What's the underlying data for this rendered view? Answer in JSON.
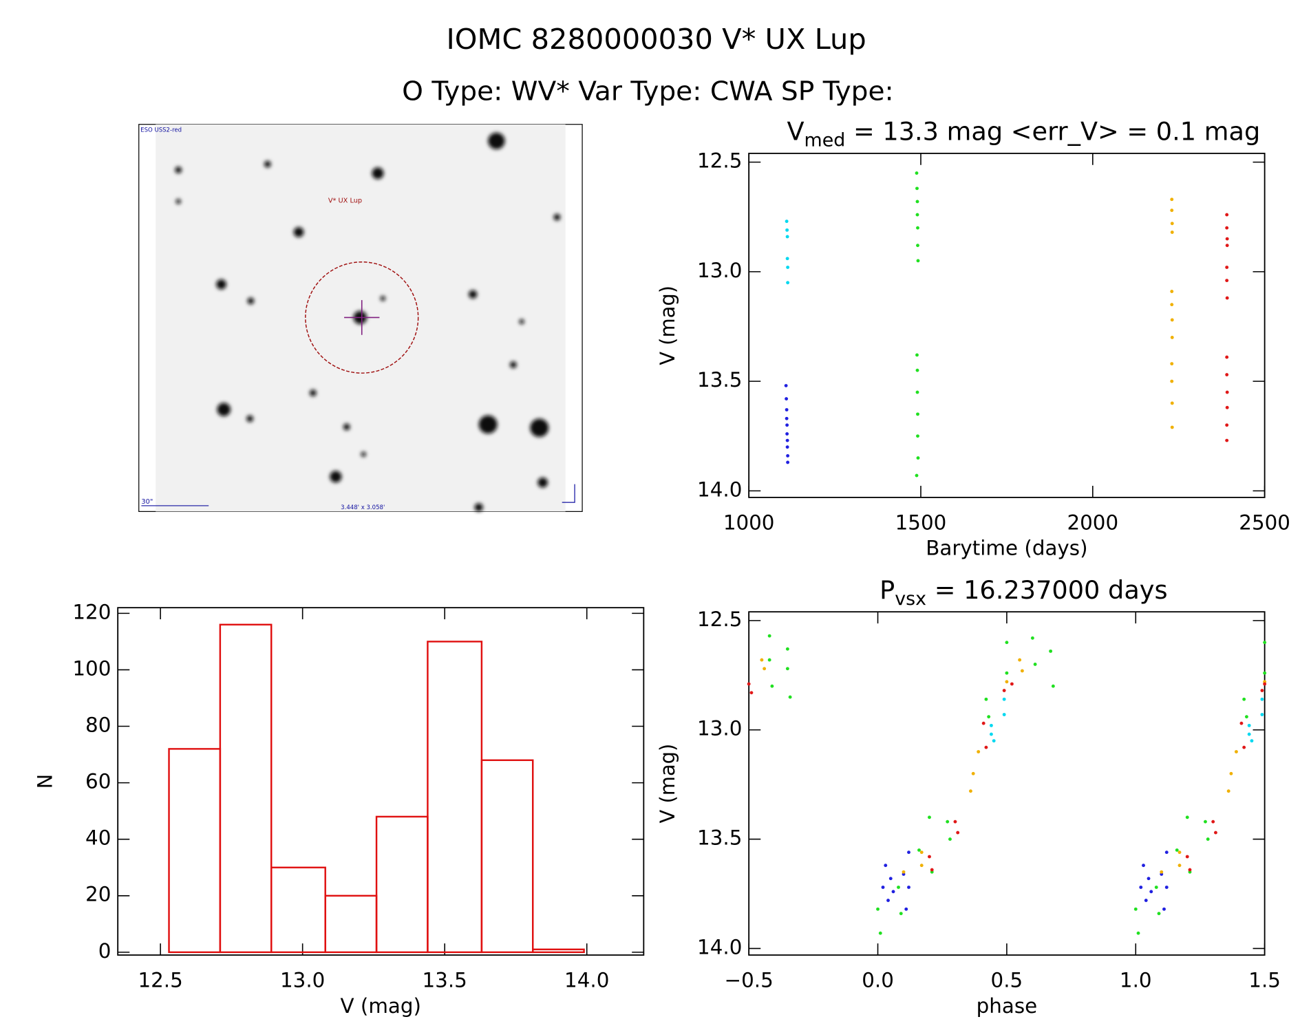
{
  "header": {
    "title": "IOMC 8280000030   V* UX Lup",
    "subtitle": "O Type: WV*  Var Type: CWA  SP Type:"
  },
  "image": {
    "source": "ESO USS2-red",
    "target": "V* UX Lup",
    "scale": "30\"",
    "size": "3.448' x 3.058'"
  },
  "chart_data": [
    {
      "type": "scatter",
      "title": {
        "main": "V",
        "sub": "med",
        "rest": " = 13.3 mag <err_V> = 0.1 mag"
      },
      "x_label": "Barytime (days)",
      "y_label": "V (mag)",
      "xlim": [
        1000,
        2500
      ],
      "xticks": [
        1000,
        1500,
        2000,
        2500
      ],
      "ylim": [
        14.03,
        12.46
      ],
      "yticks": [
        12.5,
        {
          "value": 13,
          "label": "13.0"
        },
        13.5,
        {
          "value": 14,
          "label": "14.0"
        }
      ],
      "series": [
        {
          "color": "#00d8f0",
          "x": [
            1110,
            1111,
            1112,
            1112,
            1113,
            1113
          ],
          "values": [
            12.77,
            12.81,
            12.84,
            12.94,
            12.98,
            13.05
          ]
        },
        {
          "color": "#2020e0",
          "x": [
            1108,
            1109,
            1110,
            1110,
            1111,
            1111,
            1112,
            1112,
            1113,
            1113
          ],
          "values": [
            13.52,
            13.58,
            13.63,
            13.67,
            13.7,
            13.74,
            13.77,
            13.8,
            13.84,
            13.87
          ]
        },
        {
          "color": "#20e020",
          "x": [
            1488,
            1489,
            1490,
            1490,
            1491,
            1491,
            1492,
            1489,
            1490,
            1490,
            1491,
            1491,
            1492,
            1488
          ],
          "values": [
            12.55,
            12.62,
            12.68,
            12.74,
            12.8,
            12.88,
            12.95,
            13.38,
            13.45,
            13.55,
            13.65,
            13.75,
            13.85,
            13.93
          ]
        },
        {
          "color": "#f0b000",
          "x": [
            2230,
            2230,
            2231,
            2231,
            2230,
            2230,
            2231,
            2231,
            2230,
            2230,
            2231,
            2231
          ],
          "values": [
            12.67,
            12.72,
            12.78,
            12.82,
            13.09,
            13.15,
            13.22,
            13.3,
            13.42,
            13.5,
            13.6,
            13.71
          ]
        },
        {
          "color": "#e01818",
          "x": [
            2390,
            2390,
            2391,
            2391,
            2390,
            2390,
            2391,
            2390,
            2390,
            2391,
            2391,
            2390,
            2390
          ],
          "values": [
            12.74,
            12.8,
            12.85,
            12.88,
            12.98,
            13.04,
            13.12,
            13.39,
            13.47,
            13.55,
            13.62,
            13.7,
            13.77
          ]
        }
      ]
    },
    {
      "type": "histogram",
      "x_label": "V (mag)",
      "y_label": "N",
      "color": "#e01010",
      "bins": [
        12.53,
        12.71,
        12.89,
        13.08,
        13.26,
        13.44,
        13.63,
        13.81,
        13.99
      ],
      "values": [
        72,
        116,
        30,
        20,
        48,
        110,
        68,
        1
      ],
      "xlim": [
        12.35,
        14.2
      ],
      "xticks": [
        12.5,
        {
          "value": 13,
          "label": "13.0"
        },
        13.5,
        {
          "value": 14,
          "label": "14.0"
        }
      ],
      "ylim": [
        -1,
        122
      ],
      "yticks": [
        0,
        20,
        40,
        60,
        80,
        100,
        120
      ]
    },
    {
      "type": "scatter",
      "title": {
        "main": "P",
        "sub": "vsx",
        "rest": " = 16.237000 days"
      },
      "x_label": "phase",
      "y_label": "V (mag)",
      "xlim": [
        -0.5,
        1.5
      ],
      "xticks": [
        {
          "value": -0.5,
          "label": "−0.5"
        },
        {
          "value": 0,
          "label": "0.0"
        },
        0.5,
        {
          "value": 1,
          "label": "1.0"
        },
        1.5
      ],
      "ylim": [
        14.03,
        12.46
      ],
      "yticks": [
        12.5,
        {
          "value": 13,
          "label": "13.0"
        },
        13.5,
        {
          "value": 14,
          "label": "14.0"
        }
      ],
      "series": [
        {
          "color": "#00d8f0",
          "x": [
            0.44,
            0.44,
            0.45,
            0.49,
            0.49,
            1.44,
            1.44,
            1.45,
            1.49,
            1.49
          ],
          "values": [
            12.98,
            13.02,
            13.05,
            12.86,
            12.93,
            12.98,
            13.02,
            13.05,
            12.86,
            12.93
          ]
        },
        {
          "color": "#2020e0",
          "x": [
            0.02,
            0.03,
            0.04,
            0.05,
            0.06,
            0.1,
            0.11,
            0.12,
            0.12,
            1.02,
            1.03,
            1.04,
            1.05,
            1.06,
            1.1,
            1.11,
            1.12,
            1.12
          ],
          "values": [
            13.72,
            13.62,
            13.78,
            13.68,
            13.74,
            13.66,
            13.82,
            13.56,
            13.72,
            13.72,
            13.62,
            13.78,
            13.68,
            13.74,
            13.66,
            13.82,
            13.56,
            13.72
          ]
        },
        {
          "color": "#20e020",
          "x": [
            -0.42,
            -0.42,
            -0.41,
            -0.35,
            -0.35,
            -0.34,
            0.0,
            0.01,
            0.08,
            0.09,
            0.16,
            0.2,
            0.21,
            0.27,
            0.28,
            0.42,
            0.43,
            0.5,
            0.5,
            0.6,
            0.61,
            0.67,
            0.68,
            1.0,
            1.01,
            1.08,
            1.09,
            1.16,
            1.2,
            1.21,
            1.27,
            1.28,
            1.42,
            1.43,
            1.5,
            1.5
          ],
          "values": [
            12.57,
            12.68,
            12.8,
            12.63,
            12.72,
            12.85,
            13.82,
            13.93,
            13.72,
            13.84,
            13.55,
            13.4,
            13.65,
            13.42,
            13.5,
            12.86,
            12.94,
            12.6,
            12.74,
            12.58,
            12.7,
            12.64,
            12.8,
            13.82,
            13.93,
            13.72,
            13.84,
            13.55,
            13.4,
            13.65,
            13.42,
            13.5,
            12.86,
            12.94,
            12.6,
            12.74
          ]
        },
        {
          "color": "#f0b000",
          "x": [
            -0.45,
            -0.44,
            0.1,
            0.17,
            0.17,
            0.36,
            0.37,
            0.39,
            0.5,
            0.55,
            0.56,
            1.1,
            1.17,
            1.17,
            1.36,
            1.37,
            1.39,
            1.5
          ],
          "values": [
            12.68,
            12.72,
            13.65,
            13.56,
            13.62,
            13.28,
            13.2,
            13.1,
            12.78,
            12.68,
            12.73,
            13.65,
            13.56,
            13.62,
            13.28,
            13.2,
            13.1,
            12.78
          ]
        },
        {
          "color": "#e01818",
          "x": [
            -0.5,
            -0.49,
            0.2,
            0.21,
            0.3,
            0.31,
            0.41,
            0.42,
            0.49,
            0.52,
            1.2,
            1.21,
            1.3,
            1.31,
            1.41,
            1.42,
            1.49,
            1.5
          ],
          "values": [
            12.79,
            12.83,
            13.58,
            13.64,
            13.42,
            13.47,
            12.97,
            13.08,
            12.82,
            12.79,
            13.58,
            13.64,
            13.42,
            13.47,
            12.97,
            13.08,
            12.82,
            12.79
          ]
        }
      ]
    }
  ]
}
